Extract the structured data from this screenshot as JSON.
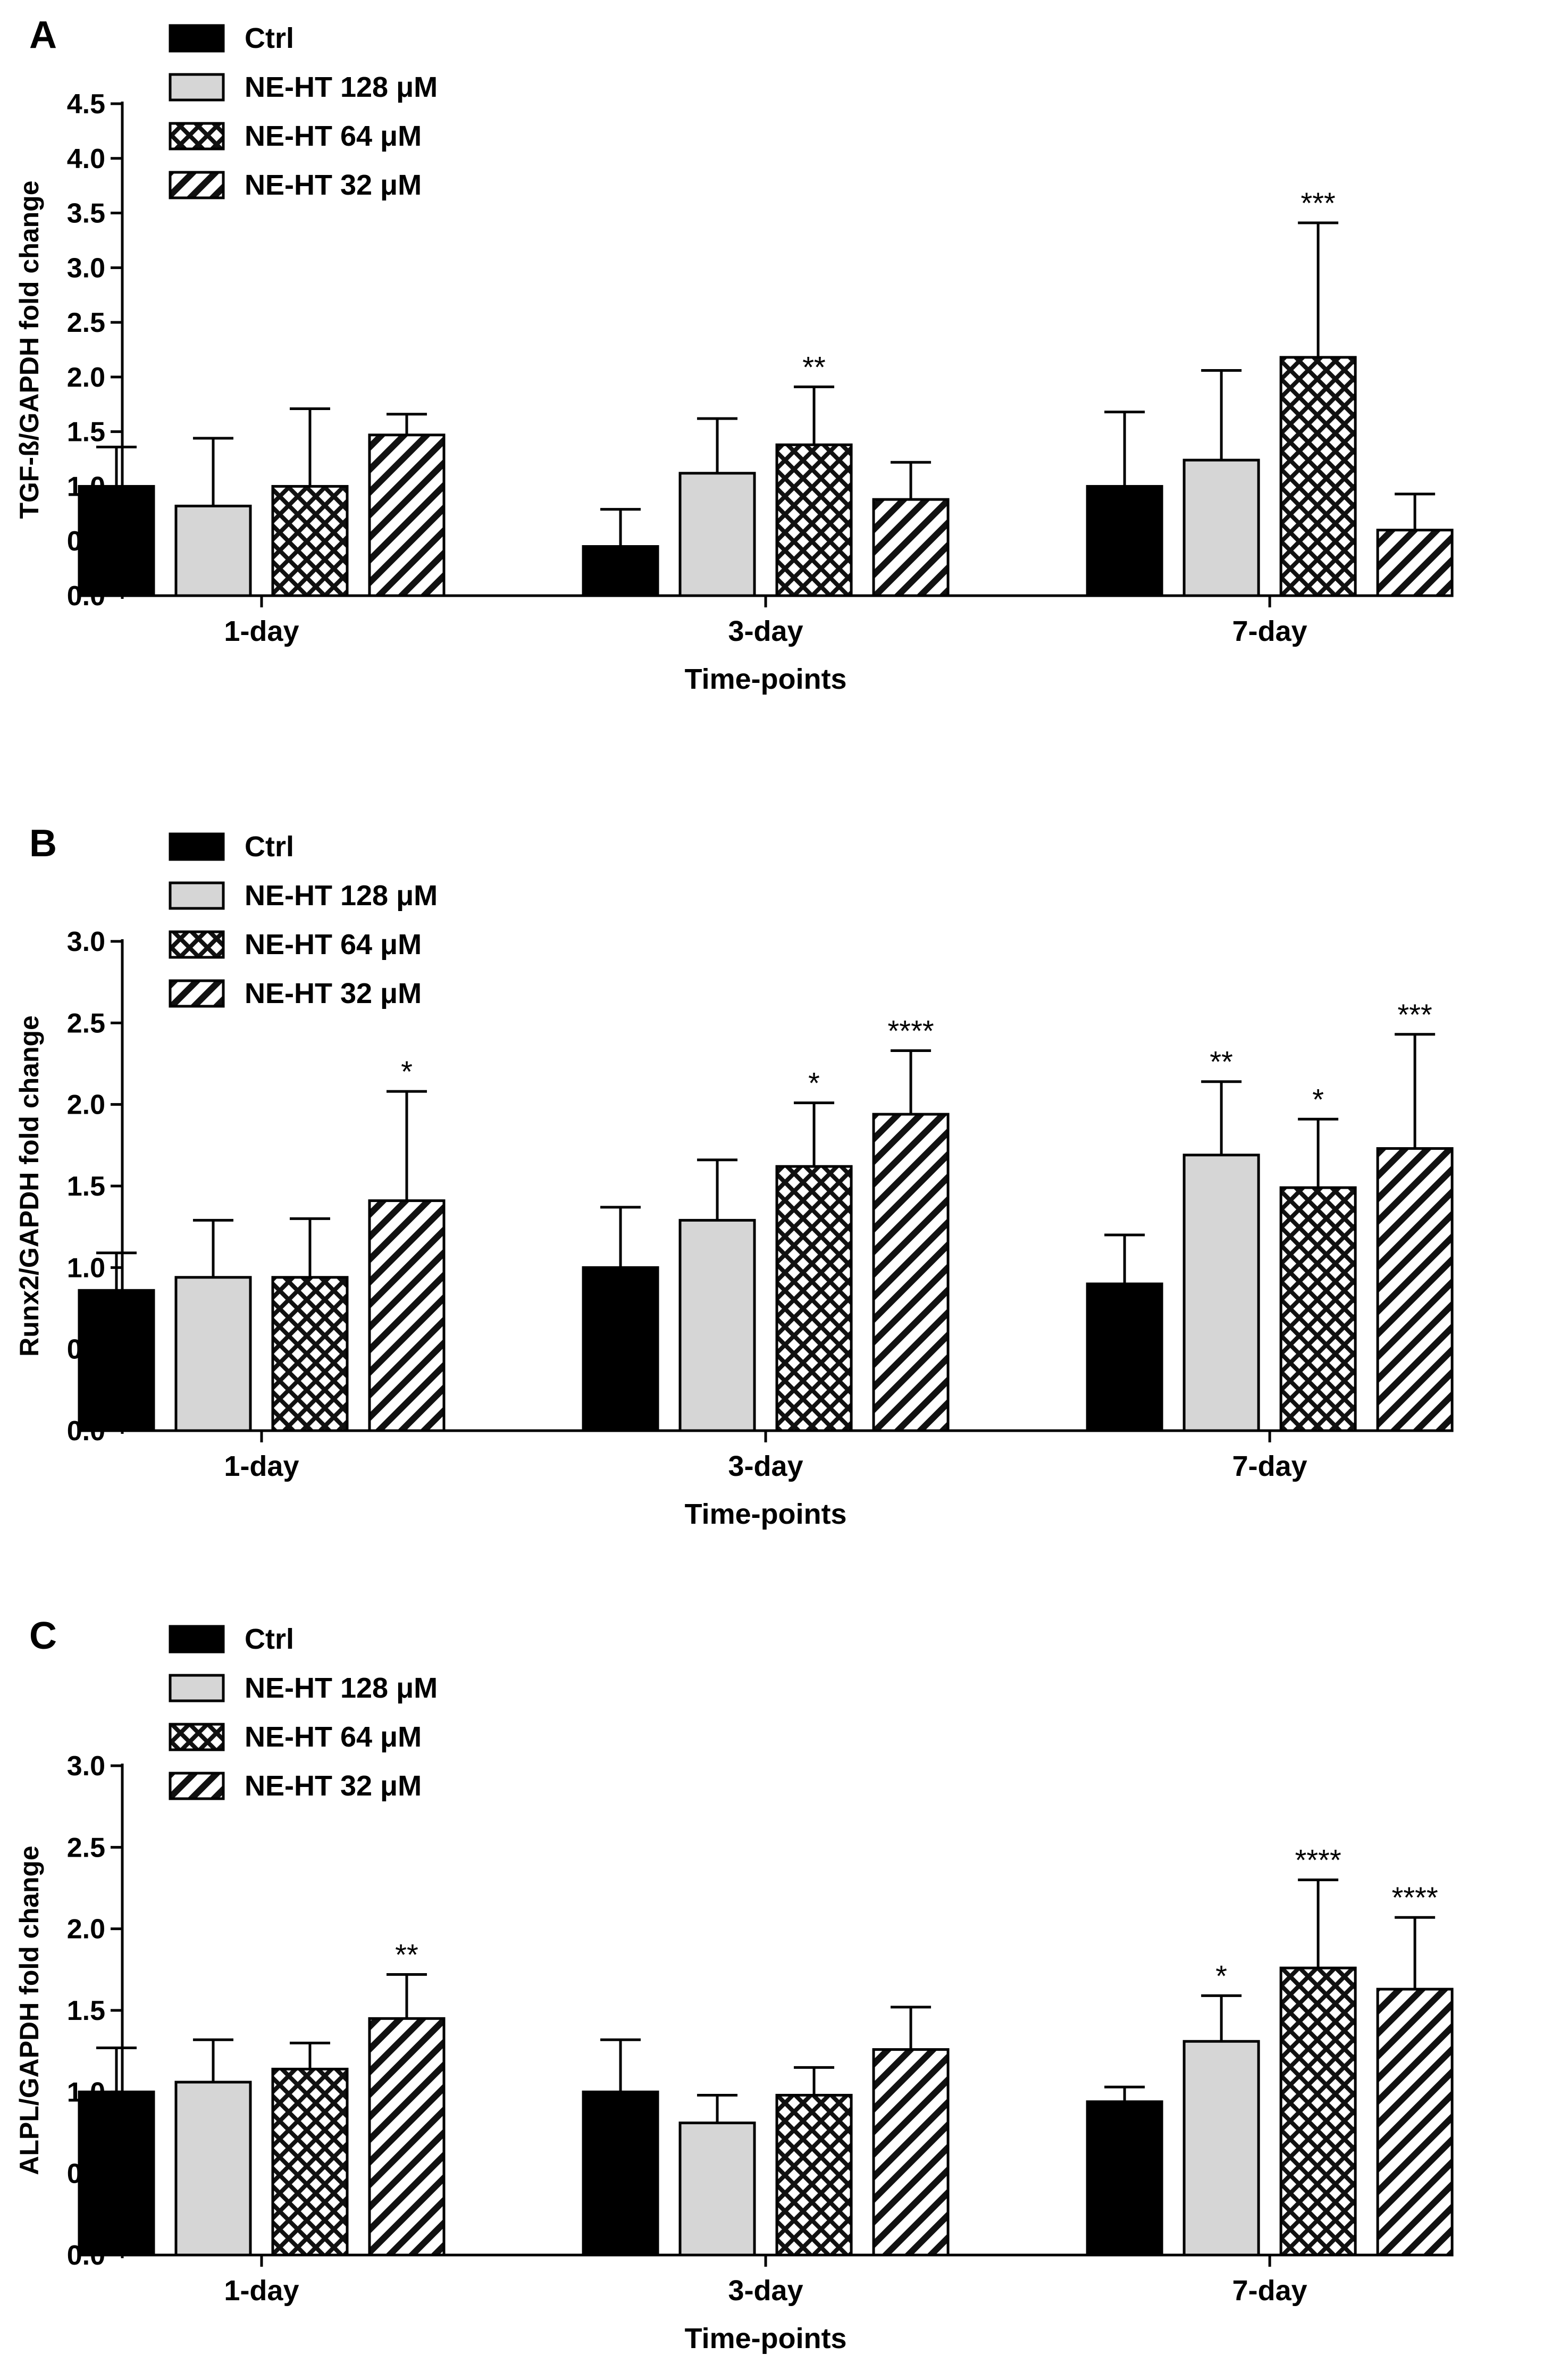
{
  "chart_data": [
    {
      "panel": "A",
      "type": "bar",
      "categories": [
        "1-day",
        "3-day",
        "7-day"
      ],
      "xlabel": "Time-points",
      "ylabel": "TGF-ß/GAPDH fold change",
      "ylim": [
        0,
        4.5
      ],
      "ytick_step": 0.5,
      "legend": "top-left",
      "series": [
        {
          "name": "Ctrl",
          "pattern": "solid",
          "values": [
            1.0,
            0.45,
            1.0
          ],
          "errors": [
            0.36,
            0.34,
            0.68
          ],
          "sig": [
            "",
            "",
            ""
          ]
        },
        {
          "name": "NE-HT 128 μM",
          "pattern": "light",
          "values": [
            0.82,
            1.12,
            1.24
          ],
          "errors": [
            0.62,
            0.5,
            0.82
          ],
          "sig": [
            "",
            "",
            ""
          ]
        },
        {
          "name": "NE-HT 64 μM",
          "pattern": "cross",
          "values": [
            1.0,
            1.38,
            2.18
          ],
          "errors": [
            0.71,
            0.53,
            1.23
          ],
          "sig": [
            "",
            "**",
            "***"
          ]
        },
        {
          "name": "NE-HT 32 μM",
          "pattern": "diag",
          "values": [
            1.47,
            0.88,
            0.6
          ],
          "errors": [
            0.19,
            0.34,
            0.33
          ],
          "sig": [
            "",
            "",
            ""
          ]
        }
      ]
    },
    {
      "panel": "B",
      "type": "bar",
      "categories": [
        "1-day",
        "3-day",
        "7-day"
      ],
      "xlabel": "Time-points",
      "ylabel": "Runx2/GAPDH fold change",
      "ylim": [
        0,
        3.0
      ],
      "ytick_step": 0.5,
      "legend": "top-left",
      "series": [
        {
          "name": "Ctrl",
          "pattern": "solid",
          "values": [
            0.86,
            1.0,
            0.9
          ],
          "errors": [
            0.23,
            0.37,
            0.3
          ],
          "sig": [
            "",
            "",
            ""
          ]
        },
        {
          "name": "NE-HT 128 μM",
          "pattern": "light",
          "values": [
            0.94,
            1.29,
            1.69
          ],
          "errors": [
            0.35,
            0.37,
            0.45
          ],
          "sig": [
            "",
            "",
            "**"
          ]
        },
        {
          "name": "NE-HT 64 μM",
          "pattern": "cross",
          "values": [
            0.94,
            1.62,
            1.49
          ],
          "errors": [
            0.36,
            0.39,
            0.42
          ],
          "sig": [
            "",
            "*",
            "*"
          ]
        },
        {
          "name": "NE-HT 32 μM",
          "pattern": "diag",
          "values": [
            1.41,
            1.94,
            1.73
          ],
          "errors": [
            0.67,
            0.39,
            0.7
          ],
          "sig": [
            "*",
            "****",
            "***"
          ]
        }
      ]
    },
    {
      "panel": "C",
      "type": "bar",
      "categories": [
        "1-day",
        "3-day",
        "7-day"
      ],
      "xlabel": "Time-points",
      "ylabel": "ALPL/GAPDH fold change",
      "ylim": [
        0,
        3.0
      ],
      "ytick_step": 0.5,
      "legend": "top-left",
      "series": [
        {
          "name": "Ctrl",
          "pattern": "solid",
          "values": [
            1.0,
            1.0,
            0.94
          ],
          "errors": [
            0.27,
            0.32,
            0.09
          ],
          "sig": [
            "",
            "",
            ""
          ]
        },
        {
          "name": "NE-HT 128 μM",
          "pattern": "light",
          "values": [
            1.06,
            0.81,
            1.31
          ],
          "errors": [
            0.26,
            0.17,
            0.28
          ],
          "sig": [
            "",
            "",
            "*"
          ]
        },
        {
          "name": "NE-HT 64 μM",
          "pattern": "cross",
          "values": [
            1.14,
            0.98,
            1.76
          ],
          "errors": [
            0.16,
            0.17,
            0.54
          ],
          "sig": [
            "",
            "",
            "****"
          ]
        },
        {
          "name": "NE-HT 32 μM",
          "pattern": "diag",
          "values": [
            1.45,
            1.26,
            1.63
          ],
          "errors": [
            0.27,
            0.26,
            0.44
          ],
          "sig": [
            "**",
            "",
            "****"
          ]
        }
      ]
    }
  ]
}
